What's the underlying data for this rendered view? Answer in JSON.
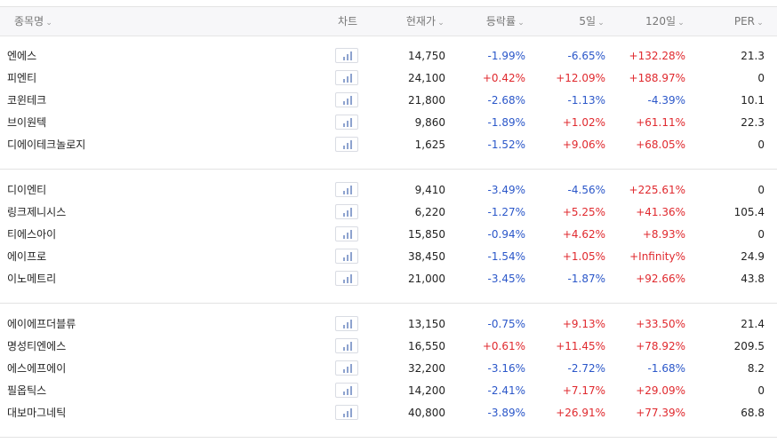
{
  "header": {
    "name_label": "종목명",
    "chart_label": "차트",
    "price_label": "현재가",
    "change_label": "등락률",
    "d5_label": "5일",
    "d120_label": "120일",
    "per_label": "PER"
  },
  "colors": {
    "up": "#e0292e",
    "down": "#2b57c9"
  },
  "chart_icon": "bar-chart-icon",
  "groups": [
    [
      {
        "name": "엔에스",
        "price": "14,750",
        "change": "-1.99%",
        "d5": "-6.65%",
        "d120": "+132.28%",
        "per": "21.3"
      },
      {
        "name": "피엔티",
        "price": "24,100",
        "change": "+0.42%",
        "d5": "+12.09%",
        "d120": "+188.97%",
        "per": "0"
      },
      {
        "name": "코윈테크",
        "price": "21,800",
        "change": "-2.68%",
        "d5": "-1.13%",
        "d120": "-4.39%",
        "per": "10.1"
      },
      {
        "name": "브이원텍",
        "price": "9,860",
        "change": "-1.89%",
        "d5": "+1.02%",
        "d120": "+61.11%",
        "per": "22.3"
      },
      {
        "name": "디에이테크놀로지",
        "price": "1,625",
        "change": "-1.52%",
        "d5": "+9.06%",
        "d120": "+68.05%",
        "per": "0"
      }
    ],
    [
      {
        "name": "디이엔티",
        "price": "9,410",
        "change": "-3.49%",
        "d5": "-4.56%",
        "d120": "+225.61%",
        "per": "0"
      },
      {
        "name": "링크제니시스",
        "price": "6,220",
        "change": "-1.27%",
        "d5": "+5.25%",
        "d120": "+41.36%",
        "per": "105.4"
      },
      {
        "name": "티에스아이",
        "price": "15,850",
        "change": "-0.94%",
        "d5": "+4.62%",
        "d120": "+8.93%",
        "per": "0"
      },
      {
        "name": "에이프로",
        "price": "38,450",
        "change": "-1.54%",
        "d5": "+1.05%",
        "d120": "+Infinity%",
        "per": "24.9"
      },
      {
        "name": "이노메트리",
        "price": "21,000",
        "change": "-3.45%",
        "d5": "-1.87%",
        "d120": "+92.66%",
        "per": "43.8"
      }
    ],
    [
      {
        "name": "에이에프더블류",
        "price": "13,150",
        "change": "-0.75%",
        "d5": "+9.13%",
        "d120": "+33.50%",
        "per": "21.4"
      },
      {
        "name": "명성티엔에스",
        "price": "16,550",
        "change": "+0.61%",
        "d5": "+11.45%",
        "d120": "+78.92%",
        "per": "209.5"
      },
      {
        "name": "에스에프에이",
        "price": "32,200",
        "change": "-3.16%",
        "d5": "-2.72%",
        "d120": "-1.68%",
        "per": "8.2"
      },
      {
        "name": "필옵틱스",
        "price": "14,200",
        "change": "-2.41%",
        "d5": "+7.17%",
        "d120": "+29.09%",
        "per": "0"
      },
      {
        "name": "대보마그네틱",
        "price": "40,800",
        "change": "-3.89%",
        "d5": "+26.91%",
        "d120": "+77.39%",
        "per": "68.8"
      }
    ]
  ]
}
